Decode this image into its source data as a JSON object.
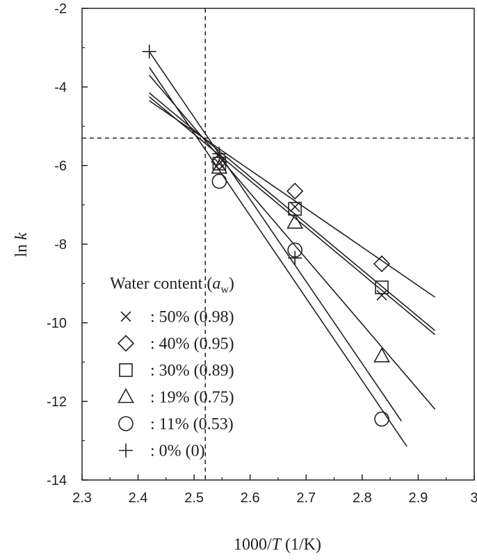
{
  "chart_data": {
    "type": "scatter",
    "xlabel": {
      "prefix": "1000/",
      "italic": "T",
      "suffix": " (1/K)"
    },
    "ylabel": {
      "prefix": "ln ",
      "italic": "k"
    },
    "xlim": [
      2.3,
      3.0
    ],
    "ylim": [
      -14,
      -2
    ],
    "x_ticks": [
      "2.3",
      "2.4",
      "2.5",
      "2.6",
      "2.7",
      "2.8",
      "2.9",
      "3"
    ],
    "y_ticks": [
      "-2",
      "-4",
      "-6",
      "-8",
      "-10",
      "-12",
      "-14"
    ],
    "reference_lines": {
      "x": 2.52,
      "y": -5.3
    },
    "legend": {
      "title_prefix": "Water content (",
      "title_var": "a",
      "title_sub": "w",
      "title_suffix": ")",
      "position": "lower-left"
    },
    "series": [
      {
        "marker": "x",
        "label": ": 50% (0.98)",
        "points": [
          [
            2.545,
            -5.95
          ],
          [
            2.68,
            -7.05
          ],
          [
            2.835,
            -9.3
          ]
        ],
        "fit": [
          [
            2.42,
            -4.25
          ],
          [
            2.93,
            -10.3
          ]
        ]
      },
      {
        "marker": "diamond",
        "label": ": 40% (0.95)",
        "points": [
          [
            2.545,
            -5.9
          ],
          [
            2.68,
            -6.65
          ],
          [
            2.835,
            -8.5
          ]
        ],
        "fit": [
          [
            2.42,
            -4.35
          ],
          [
            2.93,
            -9.35
          ]
        ]
      },
      {
        "marker": "square",
        "label": ": 30% (0.89)",
        "points": [
          [
            2.545,
            -5.95
          ],
          [
            2.68,
            -7.1
          ],
          [
            2.835,
            -9.1
          ]
        ],
        "fit": [
          [
            2.42,
            -4.15
          ],
          [
            2.93,
            -10.2
          ]
        ]
      },
      {
        "marker": "triangle",
        "label": ": 19% (0.75)",
        "points": [
          [
            2.545,
            -6.05
          ],
          [
            2.68,
            -7.45
          ],
          [
            2.835,
            -10.85
          ]
        ],
        "fit": [
          [
            2.42,
            -3.7
          ],
          [
            2.93,
            -12.2
          ]
        ]
      },
      {
        "marker": "circle",
        "label": ": 11% (0.53)",
        "points": [
          [
            2.545,
            -6.4
          ],
          [
            2.68,
            -8.15
          ],
          [
            2.835,
            -12.45
          ]
        ],
        "fit": [
          [
            2.42,
            -3.5
          ],
          [
            2.88,
            -13.15
          ]
        ]
      },
      {
        "marker": "plus",
        "label": ":   0% (0)",
        "points": [
          [
            2.42,
            -3.1
          ],
          [
            2.545,
            -5.7
          ],
          [
            2.68,
            -8.35
          ]
        ],
        "fit": [
          [
            2.42,
            -3.1
          ],
          [
            2.87,
            -12.5
          ]
        ]
      }
    ]
  }
}
